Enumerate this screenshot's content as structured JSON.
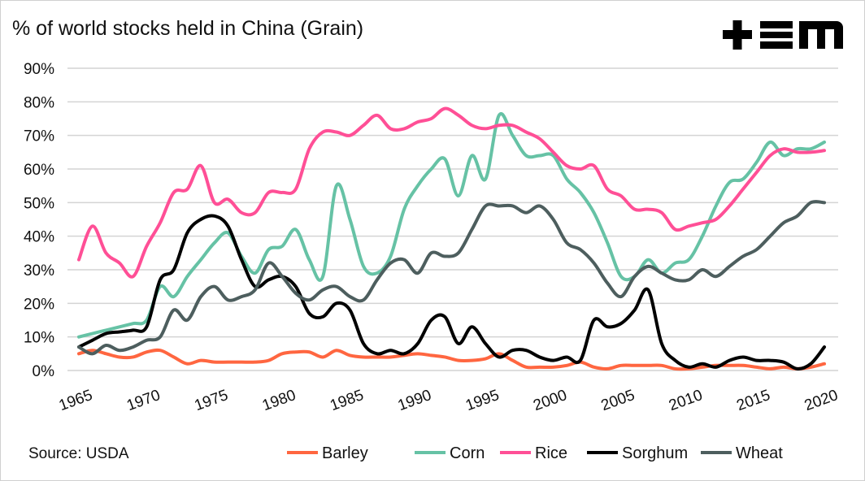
{
  "title": "% of world stocks held in China (Grain)",
  "logo_text": "+EM",
  "source": "Source: USDA",
  "chart_data": {
    "type": "line",
    "title": "% of world stocks held in China (Grain)",
    "xlabel": "",
    "ylabel": "",
    "ylim": [
      0,
      90
    ],
    "xlim": [
      1965,
      2020
    ],
    "grid": true,
    "legend_position": "bottom-right",
    "y_ticks": [
      "0%",
      "10%",
      "20%",
      "30%",
      "40%",
      "50%",
      "60%",
      "70%",
      "80%",
      "90%"
    ],
    "x_ticks": [
      "1965",
      "1970",
      "1975",
      "1980",
      "1985",
      "1990",
      "1995",
      "2000",
      "2005",
      "2010",
      "2015",
      "2020"
    ],
    "series": [
      {
        "name": "Barley",
        "color": "#ff6640",
        "values": [
          5,
          6,
          5,
          4,
          4,
          5.5,
          6,
          4,
          2,
          3,
          2.5,
          2.5,
          2.5,
          2.5,
          3,
          5,
          5.5,
          5.5,
          4,
          6,
          4.5,
          4,
          4,
          4,
          4.5,
          5,
          4.5,
          4,
          3,
          3,
          3.5,
          5,
          3,
          1,
          1,
          1,
          1.5,
          2.5,
          1,
          0.5,
          1.5,
          1.5,
          1.5,
          1.5,
          0.5,
          0.5,
          1,
          1.5,
          1.5,
          1.5,
          1,
          0.5,
          1,
          0.5,
          1,
          2
        ]
      },
      {
        "name": "Corn",
        "color": "#66c2a5",
        "values": [
          10,
          11,
          12,
          13,
          14,
          15,
          25,
          22,
          28,
          33,
          38,
          41,
          34,
          29,
          36,
          37,
          42,
          33,
          28,
          55,
          45,
          31,
          29,
          34,
          48,
          55,
          60,
          63,
          52,
          64,
          57,
          76,
          70,
          64,
          64,
          64,
          57,
          53,
          47,
          38,
          28,
          28,
          33,
          29,
          32,
          33,
          40,
          49,
          56,
          57,
          62,
          68,
          64,
          66,
          66,
          68
        ]
      },
      {
        "name": "Rice",
        "color": "#ff4f96",
        "values": [
          33,
          43,
          35,
          32,
          28,
          37,
          44,
          53,
          54,
          61,
          50,
          51,
          47,
          47,
          53,
          53,
          54,
          66,
          71,
          71,
          70,
          73,
          76,
          72,
          72,
          74,
          75,
          78,
          76,
          73,
          72,
          73,
          73,
          71,
          69,
          65,
          61,
          60,
          61,
          54,
          52,
          48,
          48,
          47,
          42,
          43,
          44,
          45,
          49,
          54,
          59,
          64,
          66,
          65,
          65,
          65.5
        ]
      },
      {
        "name": "Sorghum",
        "color": "#000000",
        "values": [
          7,
          9,
          11,
          11.5,
          12,
          13,
          27,
          30,
          41,
          45,
          46,
          43,
          33,
          25,
          27,
          28,
          25,
          17,
          16,
          20,
          18,
          8,
          5,
          6,
          5,
          8,
          15,
          16,
          8,
          13,
          8,
          4,
          6,
          6,
          4,
          3,
          4,
          3,
          15,
          13,
          14,
          18,
          24,
          8,
          3,
          1,
          2,
          1,
          3,
          4,
          3,
          3,
          2.5,
          0.5,
          2,
          7
        ]
      },
      {
        "name": "Wheat",
        "color": "#4d5e5e",
        "values": [
          7,
          5,
          7.5,
          6,
          7,
          9,
          10,
          18,
          15,
          22,
          25,
          21,
          22,
          24,
          32,
          28,
          23,
          21,
          24,
          25,
          22,
          21,
          27,
          32,
          33,
          29,
          35,
          34,
          35,
          42,
          49,
          49,
          49,
          47,
          49,
          45,
          38,
          36,
          32,
          26,
          22,
          28,
          31,
          29,
          27,
          27,
          30,
          28,
          31,
          34,
          36,
          40,
          44,
          46,
          50,
          50
        ]
      }
    ]
  }
}
